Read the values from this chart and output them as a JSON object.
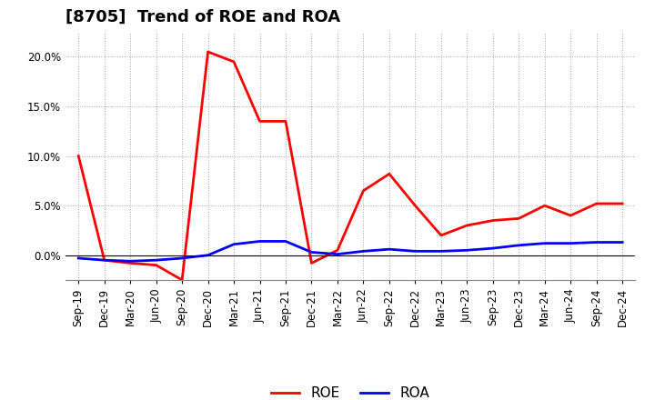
{
  "title": "[8705]  Trend of ROE and ROA",
  "x_labels": [
    "Sep-19",
    "Dec-19",
    "Mar-20",
    "Jun-20",
    "Sep-20",
    "Dec-20",
    "Mar-21",
    "Jun-21",
    "Sep-21",
    "Dec-21",
    "Mar-22",
    "Jun-22",
    "Sep-22",
    "Dec-22",
    "Mar-23",
    "Jun-23",
    "Sep-23",
    "Dec-23",
    "Mar-24",
    "Jun-24",
    "Sep-24",
    "Dec-24"
  ],
  "roe": [
    10.0,
    -0.5,
    -0.8,
    -1.0,
    -2.5,
    20.5,
    19.5,
    13.5,
    13.5,
    -0.8,
    0.5,
    6.5,
    8.2,
    5.0,
    2.0,
    3.0,
    3.5,
    3.7,
    5.0,
    4.0,
    5.2,
    5.2
  ],
  "roa": [
    -0.3,
    -0.5,
    -0.6,
    -0.5,
    -0.3,
    0.0,
    1.1,
    1.4,
    1.4,
    0.3,
    0.1,
    0.4,
    0.6,
    0.4,
    0.4,
    0.5,
    0.7,
    1.0,
    1.2,
    1.2,
    1.3,
    1.3
  ],
  "roe_color": "#FF0000",
  "roa_color": "#0000FF",
  "background_color": "#FFFFFF",
  "grid_color": "#AAAAAA",
  "ylim": [
    -2.5,
    22.5
  ],
  "yticks": [
    0.0,
    5.0,
    10.0,
    15.0,
    20.0
  ],
  "line_width": 2.0,
  "title_fontsize": 13,
  "legend_fontsize": 11,
  "tick_fontsize": 8.5
}
